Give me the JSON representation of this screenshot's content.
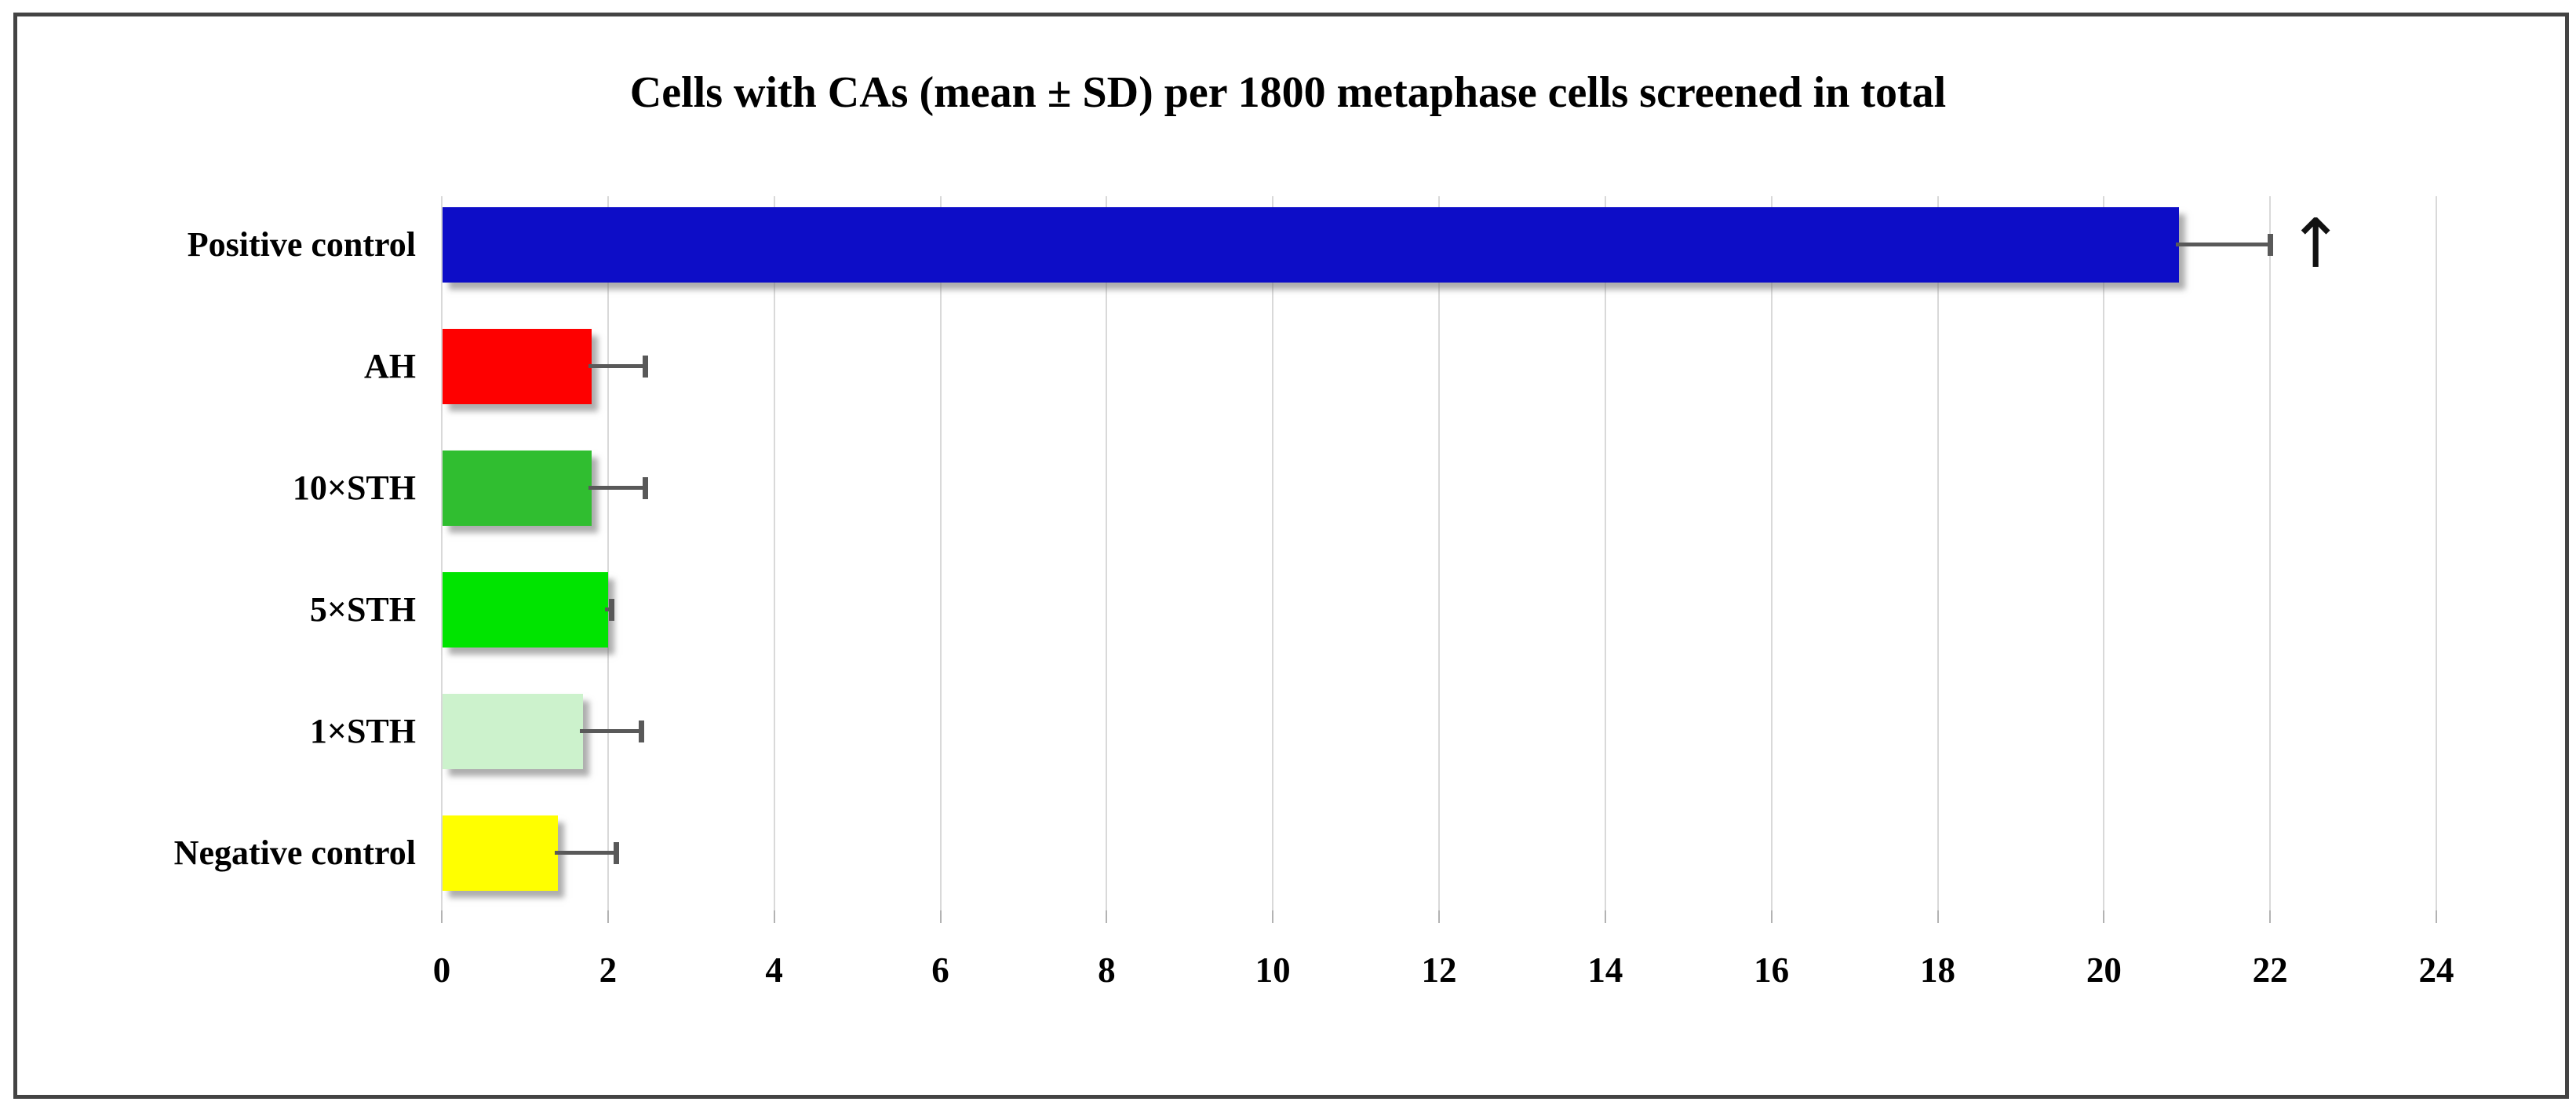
{
  "figure": {
    "background": "#ffffff",
    "border_color": "#434343"
  },
  "chart_data": {
    "type": "bar",
    "orientation": "horizontal",
    "title": "Cells with CAs (mean ± SD) per 1800 metaphase cells screened in total",
    "categories": [
      "Positive control",
      "AH",
      "10×STH",
      "5×STH",
      "1×STH",
      "Negative control"
    ],
    "values": [
      20.9,
      1.8,
      1.8,
      2.0,
      1.7,
      1.4
    ],
    "errors_upper": [
      1.1,
      0.65,
      0.65,
      0.04,
      0.7,
      0.7
    ],
    "bar_colors": [
      "#0d0dc7",
      "#fe0000",
      "#30be30",
      "#00e400",
      "#ccf2cc",
      "#ffff00"
    ],
    "xlim": [
      0,
      24
    ],
    "x_ticks": [
      0,
      2,
      4,
      6,
      8,
      10,
      12,
      14,
      16,
      18,
      20,
      22,
      24
    ],
    "x_tick_labels": [
      "0",
      "2",
      "4",
      "6",
      "8",
      "10",
      "12",
      "14",
      "16",
      "18",
      "20",
      "22",
      "24"
    ],
    "grid": true,
    "legend": false,
    "gridline_color": "#d9d9d9",
    "tick_color": "#b3b3b3",
    "error_bar_color": "#595959",
    "annotations": [
      {
        "type": "arrow-up",
        "symbol": "↑",
        "row_index": 0
      }
    ]
  }
}
